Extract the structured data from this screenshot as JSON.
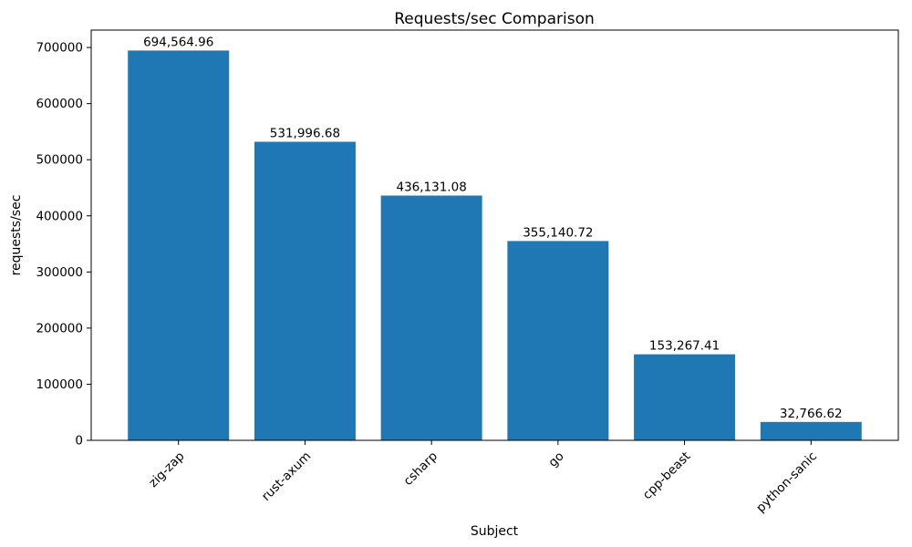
{
  "figure": {
    "background": "#ffffff"
  },
  "chart_data": {
    "type": "bar",
    "title": "Requests/sec Comparison",
    "xlabel": "Subject",
    "ylabel": "requests/sec",
    "categories": [
      "zig-zap",
      "rust-axum",
      "csharp",
      "go",
      "cpp-beast",
      "python-sanic"
    ],
    "values": [
      694564.96,
      531996.68,
      436131.08,
      355140.72,
      153267.41,
      32766.62
    ],
    "value_labels": [
      "694,564.96",
      "531,996.68",
      "436,131.08",
      "355,140.72",
      "153,267.41",
      "32,766.62"
    ],
    "yticks": [
      0,
      100000,
      200000,
      300000,
      400000,
      500000,
      600000,
      700000
    ],
    "ytick_labels": [
      "0",
      "100000",
      "200000",
      "300000",
      "400000",
      "500000",
      "600000",
      "700000"
    ],
    "ylim": [
      0,
      731000
    ],
    "xlim": [
      -0.69,
      5.69
    ],
    "bar_width": 0.8,
    "bar_color": "#1f77b4",
    "axis_color": "#000000",
    "text_color": "#000000",
    "grid": false,
    "legend": null,
    "xtick_rotation_deg": 45
  }
}
